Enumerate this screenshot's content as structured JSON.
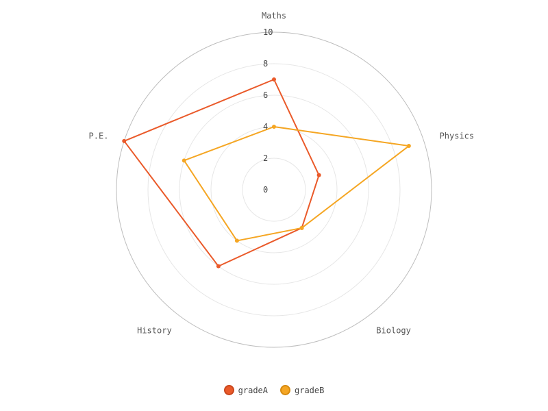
{
  "chart_data": {
    "type": "radar",
    "axes": [
      "Maths",
      "Physics",
      "Biology",
      "History",
      "P.E."
    ],
    "rlim": [
      0,
      10
    ],
    "ticks": [
      "0",
      "2",
      "4",
      "6",
      "8",
      "10"
    ],
    "series": [
      {
        "name": "gradeA",
        "values": [
          7,
          3,
          3,
          6,
          10
        ],
        "color": "#ea5a2a"
      },
      {
        "name": "gradeB",
        "values": [
          4,
          9,
          3,
          4,
          6
        ],
        "color": "#f5a623"
      }
    ],
    "legend_position": "bottom-center"
  }
}
